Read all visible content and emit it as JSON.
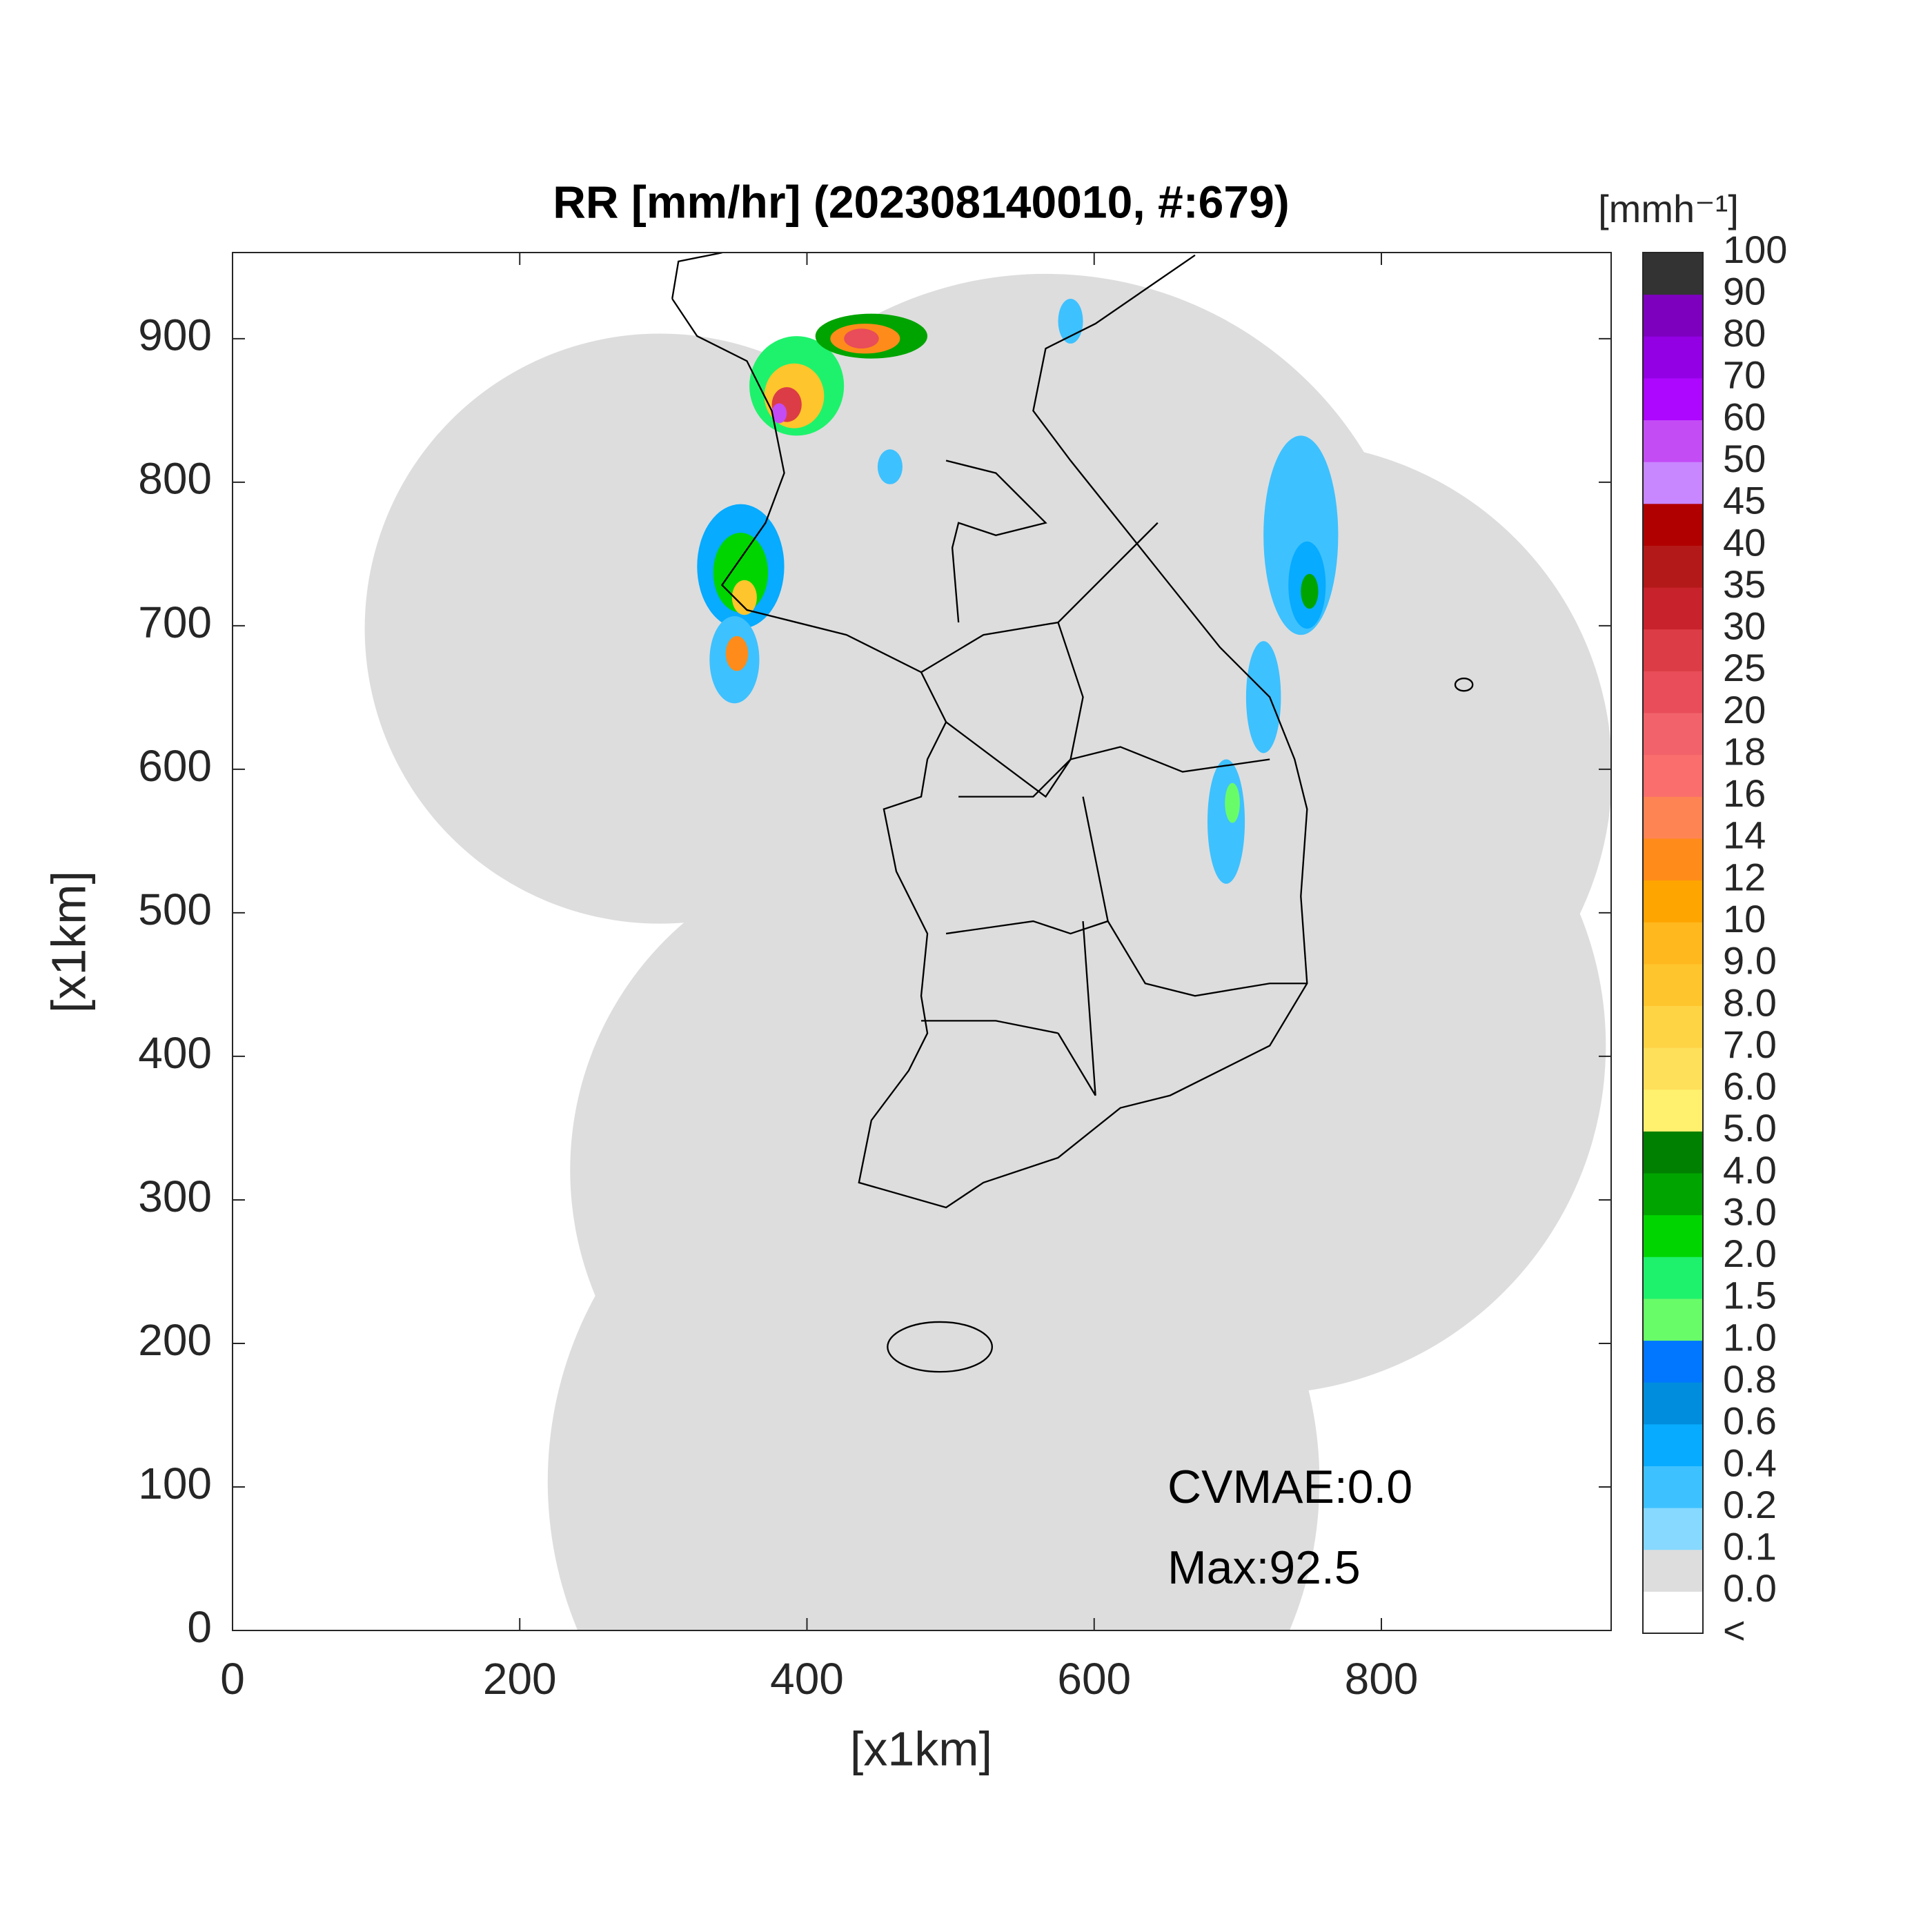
{
  "title": "RR [mm/hr] (202308140010, #:679)",
  "xlabel": "[x1km]",
  "ylabel": "[x1km]",
  "axes": {
    "xlim": [
      0,
      960
    ],
    "ylim": [
      0,
      960
    ],
    "xticks": [
      0,
      200,
      400,
      600,
      800
    ],
    "yticks": [
      0,
      100,
      200,
      300,
      400,
      500,
      600,
      700,
      800,
      900
    ]
  },
  "annotations": [
    "CVMAE:0.0",
    "Max:92.5"
  ],
  "colorbar": {
    "unit": "[mmh⁻¹]",
    "labels": [
      "<",
      "0.0",
      "0.1",
      "0.2",
      "0.4",
      "0.6",
      "0.8",
      "1.0",
      "1.5",
      "2.0",
      "3.0",
      "4.0",
      "5.0",
      "6.0",
      "7.0",
      "8.0",
      "9.0",
      "10",
      "12",
      "14",
      "16",
      "18",
      "20",
      "25",
      "30",
      "35",
      "40",
      "45",
      "50",
      "60",
      "70",
      "80",
      "90",
      "100"
    ],
    "colors": [
      "#ffffff",
      "#dddddd",
      "#87d9ff",
      "#3ec1ff",
      "#07abff",
      "#008dde",
      "#0077fe",
      "#69fc69",
      "#1ef26c",
      "#00d500",
      "#00a400",
      "#008000",
      "#fff06e",
      "#ffe05a",
      "#ffd444",
      "#ffc52c",
      "#ffb81e",
      "#ffa500",
      "#ff8c1a",
      "#ff8454",
      "#fa6e6e",
      "#f2626a",
      "#e84d59",
      "#dc3c46",
      "#c8232c",
      "#b41919",
      "#b00000",
      "#c886ff",
      "#c34cf5",
      "#ad07ff",
      "#9300e4",
      "#7e00bf",
      "#333333"
    ]
  }
}
